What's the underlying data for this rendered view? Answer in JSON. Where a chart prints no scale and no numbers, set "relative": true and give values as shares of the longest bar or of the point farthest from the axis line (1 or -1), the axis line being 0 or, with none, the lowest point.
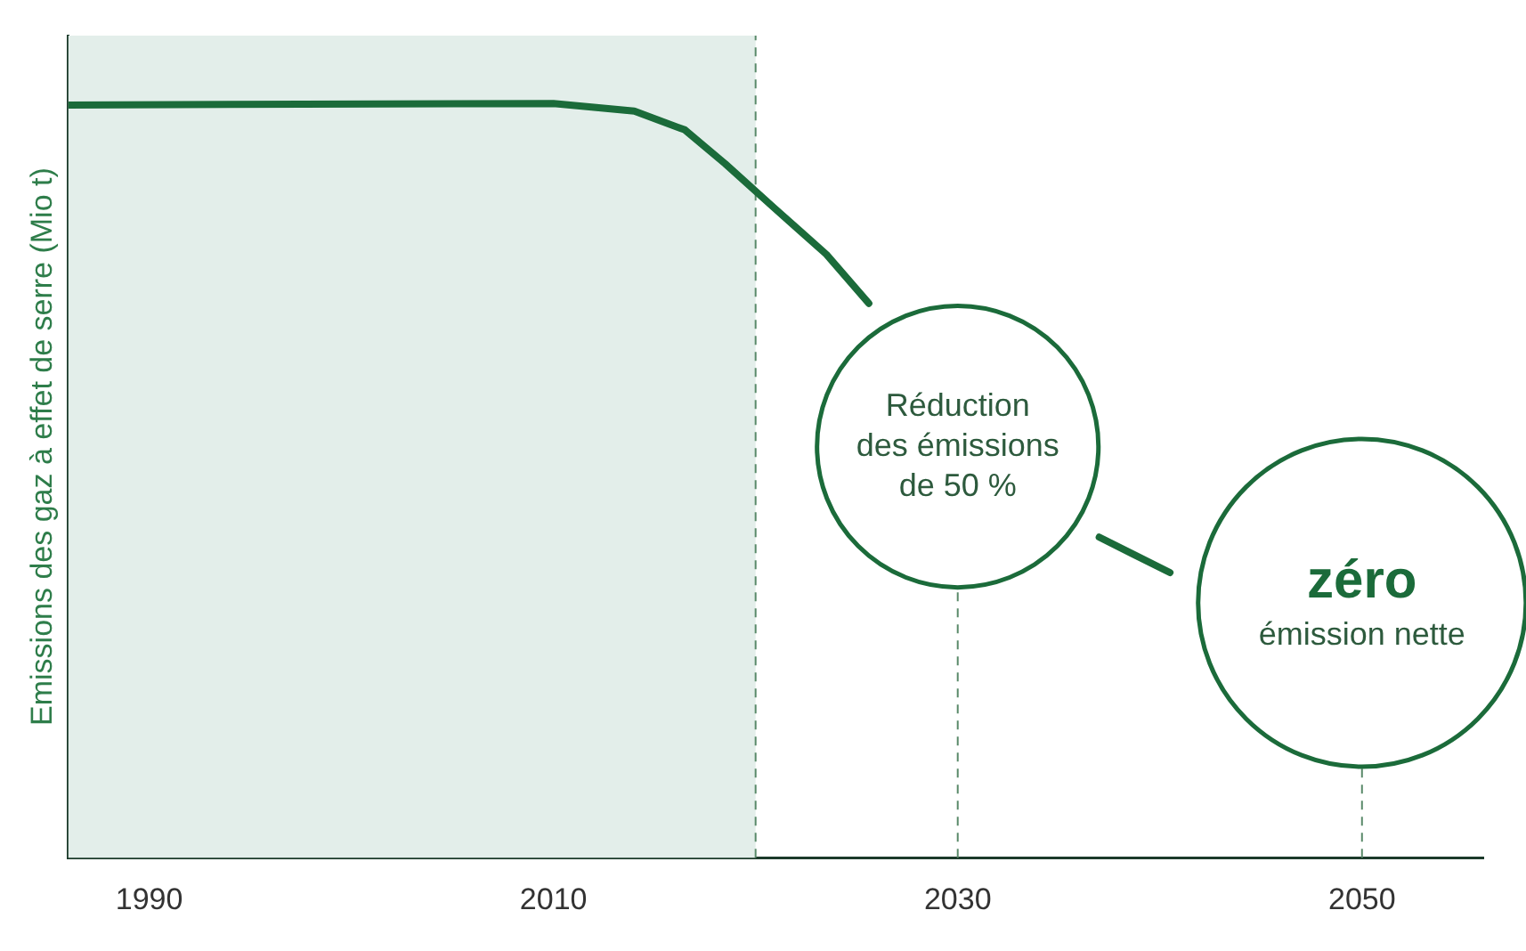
{
  "chart_data": {
    "type": "line",
    "relative": true,
    "ylabel": "Emissions des gaz à effet de serre (Mio t)",
    "xlim": [
      1986,
      2056
    ],
    "xticks": [
      1990,
      2010,
      2030,
      2050
    ],
    "series": [
      {
        "color": "#1b6b3a",
        "x": [
          1986,
          2010,
          2014,
          2016.5,
          2018.5,
          2020.9,
          2023.5,
          2025.6,
          2030,
          2037,
          2040.5
        ],
        "values": [
          0.998,
          1.0,
          0.99,
          0.965,
          0.92,
          0.862,
          0.8,
          0.735,
          null,
          0.425,
          0.378
        ]
      }
    ],
    "bands": [
      {
        "axis": "x",
        "from": 1986,
        "to": 2020,
        "color": "#e3eeea"
      }
    ],
    "ref_lines": [
      {
        "axis": "x",
        "value": 2020,
        "line_style": "dashed"
      },
      {
        "axis": "x",
        "value": 2030,
        "line_style": "dashed"
      },
      {
        "axis": "x",
        "value": 2050,
        "line_style": "dashed"
      }
    ],
    "annotations": [
      "Réduction\ndes émissions\nde 50 %",
      "zéro\némission nette"
    ],
    "grid": false,
    "legend": false
  }
}
